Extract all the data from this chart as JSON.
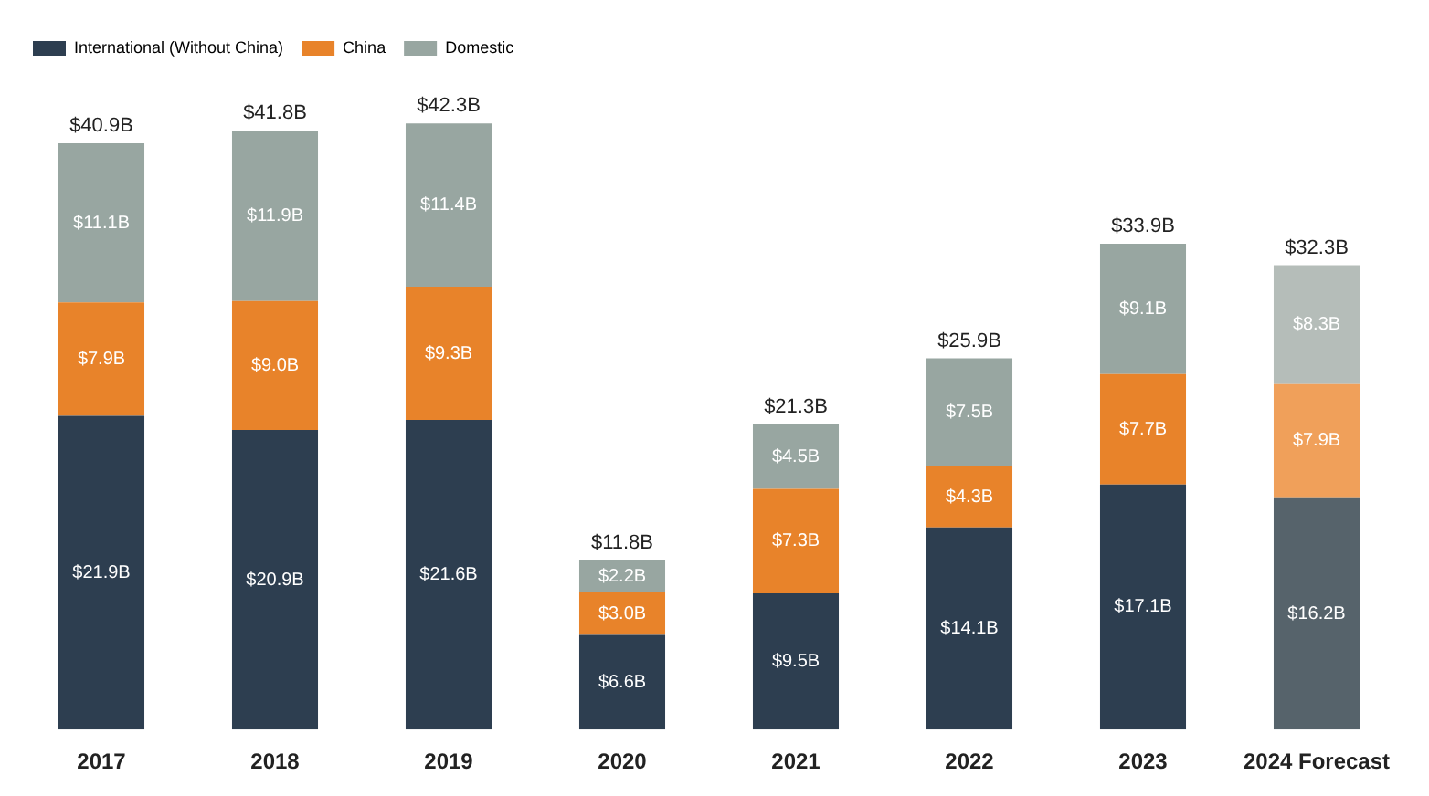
{
  "chart_data": {
    "type": "bar",
    "stacked": true,
    "legend": "top left",
    "grid": false,
    "categories": [
      "2017",
      "2018",
      "2019",
      "2020",
      "2021",
      "2022",
      "2023",
      "2024 Forecast"
    ],
    "series": [
      {
        "name": "International (Without China)",
        "color": "#2d3e50",
        "colors": [
          "#2d3e50",
          "#2d3e50",
          "#2d3e50",
          "#2d3e50",
          "#2d3e50",
          "#2d3e50",
          "#2d3e50",
          "#56636b"
        ],
        "values": [
          21.9,
          20.9,
          21.6,
          6.6,
          9.5,
          14.1,
          17.1,
          16.2
        ],
        "value_labels": [
          "$21.9B",
          "$20.9B",
          "$21.6B",
          "$6.6B",
          "$9.5B",
          "$14.1B",
          "$17.1B",
          "$16.2B"
        ]
      },
      {
        "name": "China",
        "color": "#e8832a",
        "colors": [
          "#e8832a",
          "#e8832a",
          "#e8832a",
          "#e8832a",
          "#e8832a",
          "#e8832a",
          "#e8832a",
          "#f0a05a"
        ],
        "values": [
          7.9,
          9.0,
          9.3,
          3.0,
          7.3,
          4.3,
          7.7,
          7.9
        ],
        "value_labels": [
          "$7.9B",
          "$9.0B",
          "$9.3B",
          "$3.0B",
          "$7.3B",
          "$4.3B",
          "$7.7B",
          "$7.9B"
        ]
      },
      {
        "name": "Domestic",
        "color": "#98a6a1",
        "colors": [
          "#98a6a1",
          "#98a6a1",
          "#98a6a1",
          "#98a6a1",
          "#98a6a1",
          "#98a6a1",
          "#98a6a1",
          "#b5bdb9"
        ],
        "values": [
          11.1,
          11.9,
          11.4,
          2.2,
          4.5,
          7.5,
          9.1,
          8.3
        ],
        "value_labels": [
          "$11.1B",
          "$11.9B",
          "$11.4B",
          "$2.2B",
          "$4.5B",
          "$7.5B",
          "$9.1B",
          "$8.3B"
        ]
      }
    ],
    "totals": [
      "$40.9B",
      "$41.8B",
      "$42.3B",
      "$11.8B",
      "$21.3B",
      "$25.9B",
      "$33.9B",
      "$32.3B"
    ]
  }
}
